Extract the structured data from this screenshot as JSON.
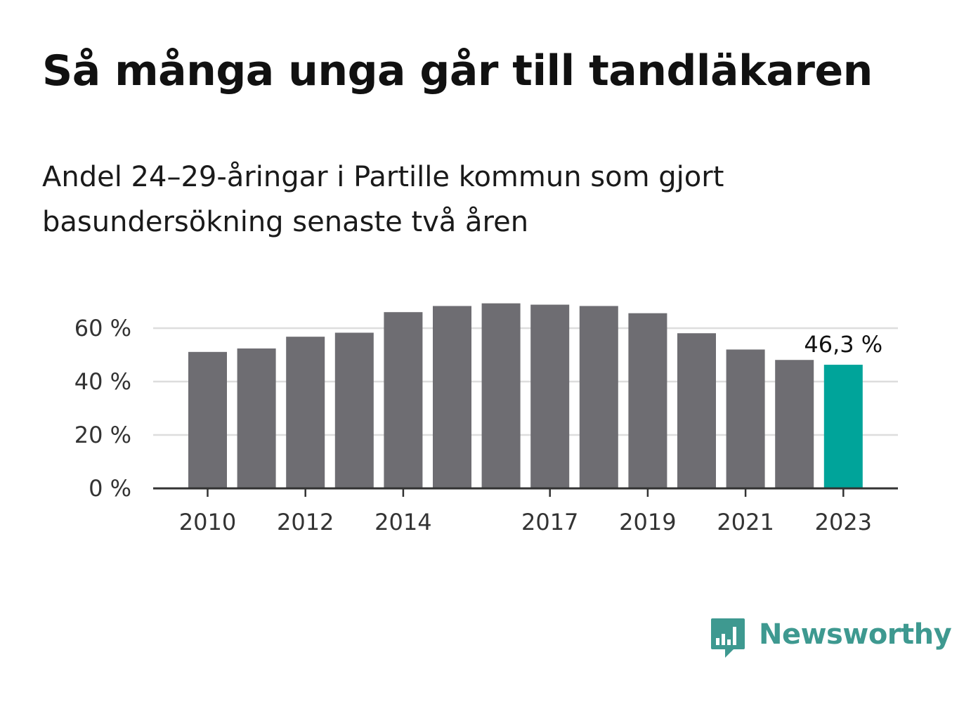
{
  "chart_data": {
    "type": "bar",
    "title": "Så många unga går till tandläkaren",
    "subtitle": "Andel 24–29-åringar i Partille kommun som gjort basundersökning senaste två åren",
    "categories": [
      "2010",
      "2011",
      "2012",
      "2013",
      "2014",
      "2015",
      "2016",
      "2017",
      "2018",
      "2019",
      "2020",
      "2021",
      "2022",
      "2023"
    ],
    "x_tick_labels": [
      "2010",
      "",
      "2012",
      "",
      "2014",
      "",
      "",
      "2017",
      "",
      "2019",
      "",
      "2021",
      "",
      "2023"
    ],
    "values": [
      51.1,
      52.4,
      56.8,
      58.3,
      66.0,
      68.3,
      69.3,
      68.8,
      68.3,
      65.6,
      58.1,
      52.0,
      48.1,
      46.3
    ],
    "ylim": [
      0,
      70
    ],
    "y_ticks": [
      0,
      20,
      40,
      60
    ],
    "y_tick_labels": [
      "0 %",
      "20 %",
      "40 %",
      "60 %"
    ],
    "highlight_label": "46,3 %",
    "xlabel": "",
    "ylabel": "",
    "grid": true,
    "colors": {
      "bar": "#6e6d72",
      "highlight": "#00a49a",
      "grid": "#dddddd",
      "axis": "#333333"
    }
  },
  "logo": {
    "name": "newsworthy-icon",
    "text": "Newsworthy",
    "color": "#3e9990"
  }
}
